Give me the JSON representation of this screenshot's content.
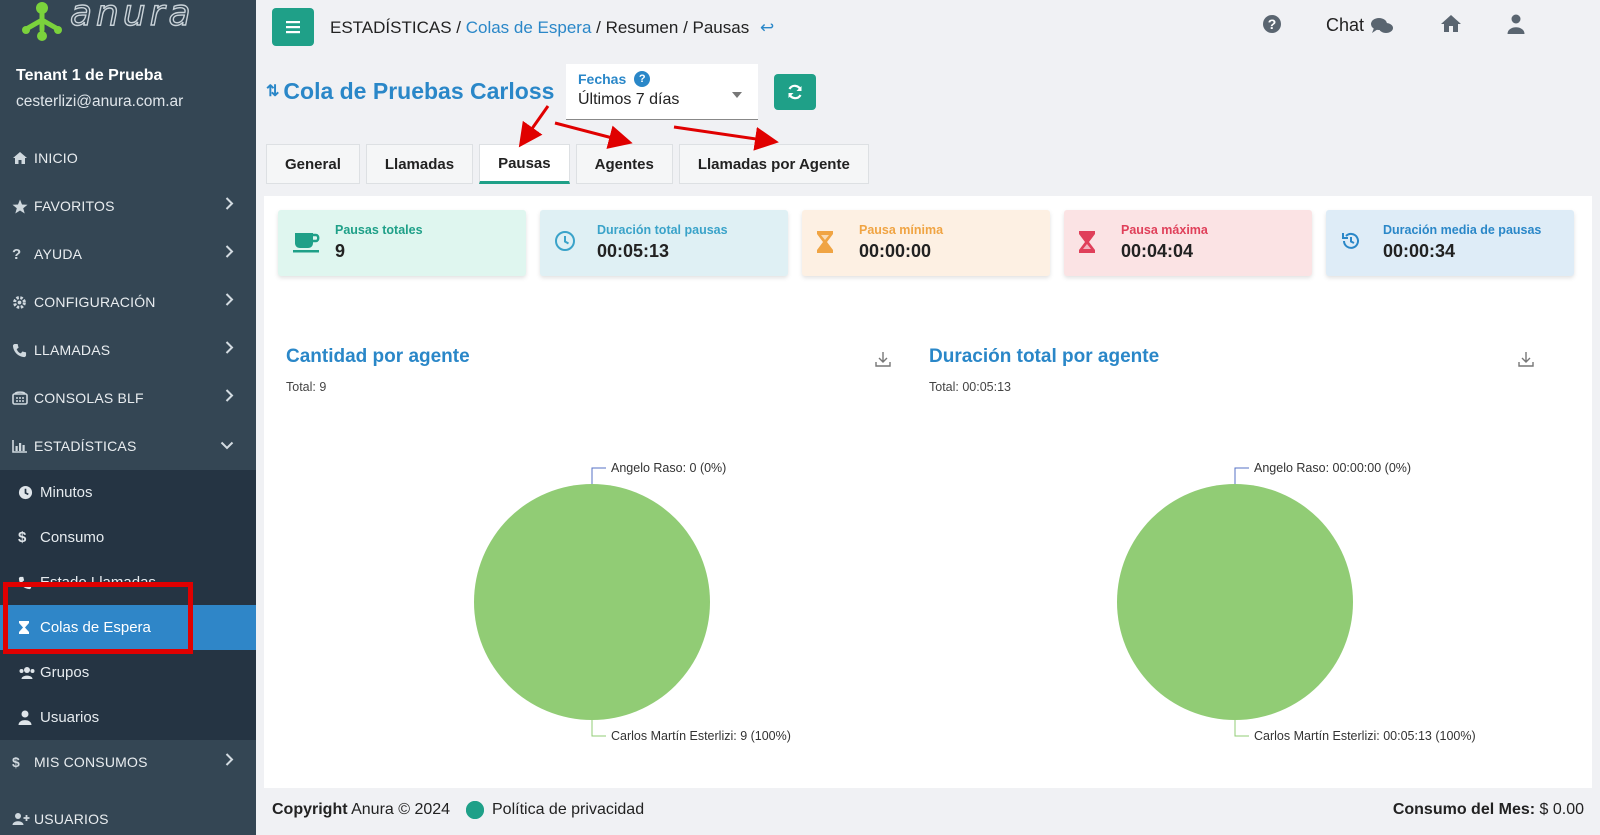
{
  "brand": {
    "logo_text": "anura"
  },
  "sidebar": {
    "tenant": "Tenant 1 de Prueba",
    "email": "cesterlizi@anura.com.ar",
    "items": [
      {
        "label": "INICIO",
        "icon": "home-icon",
        "chevron": ""
      },
      {
        "label": "FAVORITOS",
        "icon": "star-icon",
        "chevron": "›"
      },
      {
        "label": "AYUDA",
        "icon": "question-icon",
        "chevron": "›"
      },
      {
        "label": "CONFIGURACIÓN",
        "icon": "gear-icon",
        "chevron": "›"
      },
      {
        "label": "LLAMADAS",
        "icon": "phone-icon",
        "chevron": "›"
      },
      {
        "label": "CONSOLAS BLF",
        "icon": "switchboard-icon",
        "chevron": "›"
      },
      {
        "label": "ESTADÍSTICAS",
        "icon": "bar-chart-icon",
        "chevron": "⌄"
      }
    ],
    "sub_items": [
      {
        "label": "Minutos",
        "icon": "clock-icon"
      },
      {
        "label": "Consumo",
        "icon": "dollar-icon"
      },
      {
        "label": "Estado Llamadas",
        "icon": "phone-icon"
      },
      {
        "label": "Colas de Espera",
        "icon": "hourglass-icon"
      },
      {
        "label": "Grupos",
        "icon": "users-icon"
      },
      {
        "label": "Usuarios",
        "icon": "user-icon"
      }
    ],
    "bottom_items": [
      {
        "label": "MIS CONSUMOS",
        "icon": "dollar-icon",
        "chevron": "›"
      },
      {
        "label": "USUARIOS",
        "icon": "user-plus-icon",
        "chevron": ""
      }
    ]
  },
  "breadcrumb": {
    "part1": "ESTADÍSTICAS",
    "sep": " / ",
    "part2": "Colas de Espera",
    "part3": "Resumen",
    "part4": "Pausas",
    "back": "↩"
  },
  "topbar": {
    "chat_label": "Chat"
  },
  "queue": {
    "title": "Cola de Pruebas Carloss"
  },
  "fechas": {
    "label": "Fechas",
    "value": "Últimos 7 días"
  },
  "tabs": [
    "General",
    "Llamadas",
    "Pausas",
    "Agentes",
    "Llamadas por Agente"
  ],
  "cards": [
    {
      "label": "Pausas totales",
      "value": "9",
      "icon": "cup-icon",
      "color": "#1fa088",
      "bg": "#dff6ef"
    },
    {
      "label": "Duración total pausas",
      "value": "00:05:13",
      "icon": "clock-icon",
      "color": "#3aa3c9",
      "bg": "#dff0f4"
    },
    {
      "label": "Pausa mínima",
      "value": "00:00:00",
      "icon": "hourglass-icon",
      "color": "#f0a443",
      "bg": "#fdf0e3"
    },
    {
      "label": "Pausa máxima",
      "value": "00:04:04",
      "icon": "hourglass-icon",
      "color": "#e0405a",
      "bg": "#fbe3e4"
    },
    {
      "label": "Duración media de pausas",
      "value": "00:00:34",
      "icon": "history-icon",
      "color": "#2a87c8",
      "bg": "#deecf7"
    }
  ],
  "chart_data": [
    {
      "type": "pie",
      "title": "Cantidad por agente",
      "total_label": "Total: 9",
      "categories": [
        "Angelo Raso",
        "Carlos Martín Esterlizi"
      ],
      "values": [
        0,
        9
      ],
      "labels": [
        "Angelo Raso: 0 (0%)",
        "Carlos Martín Esterlizi: 9 (100%)"
      ],
      "colors": [
        "#5470c6",
        "#91cc75"
      ]
    },
    {
      "type": "pie",
      "title": "Duración total por agente",
      "total_label": "Total: 00:05:13",
      "categories": [
        "Angelo Raso",
        "Carlos Martín Esterlizi"
      ],
      "values": [
        0,
        313
      ],
      "labels": [
        "Angelo Raso: 00:00:00 (0%)",
        "Carlos Martín Esterlizi: 00:05:13 (100%)"
      ],
      "colors": [
        "#5470c6",
        "#91cc75"
      ]
    }
  ],
  "footer": {
    "copyright_bold": "Copyright",
    "copyright_rest": " Anura © 2024",
    "policy": "Política de privacidad",
    "consumo_label": "Consumo del Mes:",
    "consumo_value": " $ 0.00"
  }
}
